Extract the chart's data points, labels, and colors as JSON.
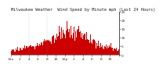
{
  "title": "Milwaukee Weather  Wind Speed by Minute mph (Last 24 Hours)",
  "ylim": [
    0,
    25
  ],
  "xlim": [
    0,
    1440
  ],
  "background_color": "#ffffff",
  "bar_color": "#cc0000",
  "grid_color": "#999999",
  "title_fontsize": 3.8,
  "tick_fontsize": 3.2,
  "yticks": [
    0,
    5,
    10,
    15,
    20,
    25
  ],
  "ytick_labels": [
    "0",
    "5",
    "10",
    "15",
    "20",
    "25"
  ],
  "xticks": [
    0,
    120,
    240,
    360,
    480,
    600,
    720,
    840,
    960,
    1080,
    1200,
    1320,
    1440
  ],
  "xtick_labels": [
    "12a",
    "2",
    "4",
    "6",
    "8",
    "10",
    "12p",
    "2",
    "4",
    "6",
    "8",
    "10",
    ""
  ],
  "num_bars": 1440,
  "seed": 42
}
